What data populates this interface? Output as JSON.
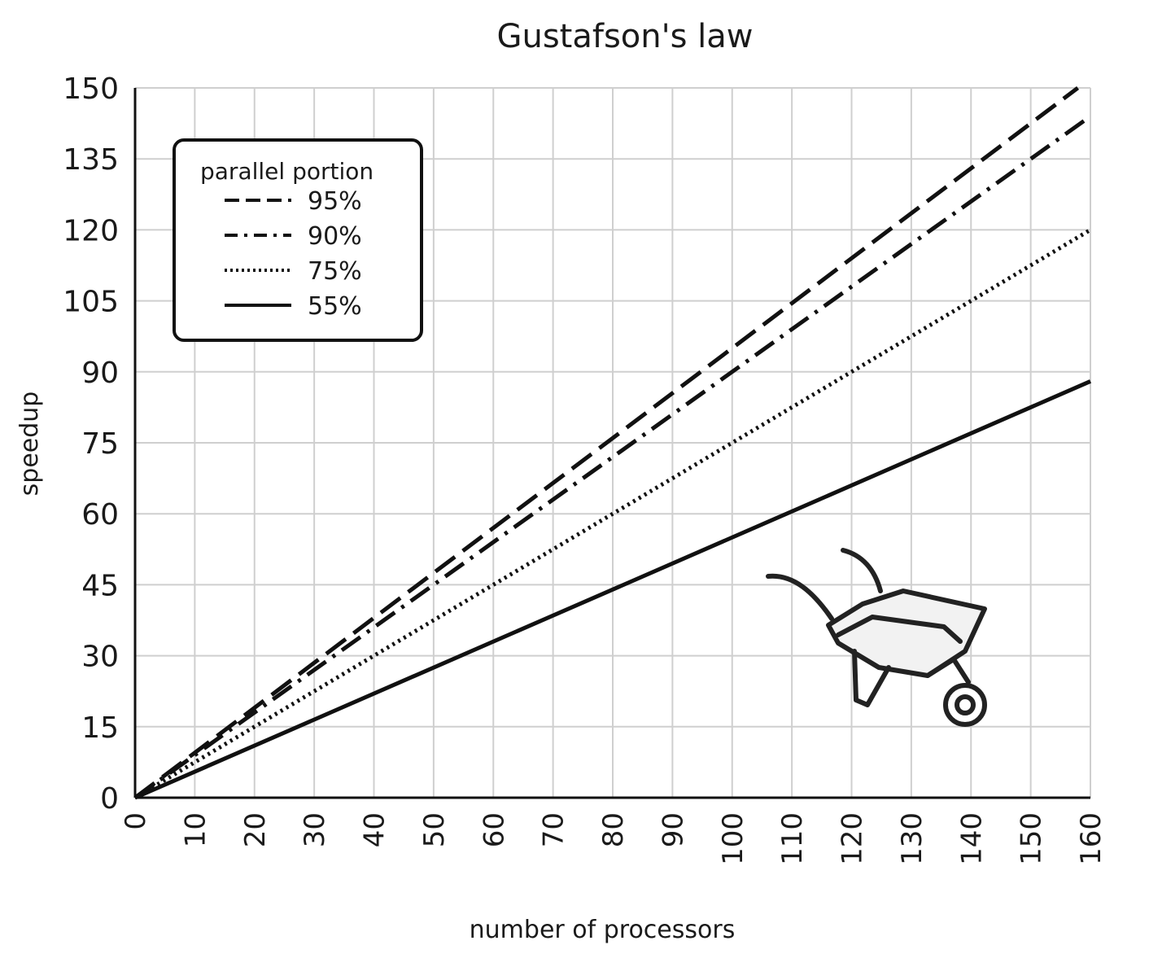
{
  "chart_data": {
    "type": "line",
    "title": "Gustafson's law",
    "xlabel": "number of processors",
    "ylabel": "speedup",
    "xlim": [
      0,
      160
    ],
    "ylim": [
      0,
      150
    ],
    "xticks": [
      0,
      10,
      20,
      30,
      40,
      50,
      60,
      70,
      80,
      90,
      100,
      110,
      120,
      130,
      140,
      150,
      160
    ],
    "yticks": [
      0,
      15,
      30,
      45,
      60,
      75,
      90,
      105,
      120,
      135,
      150
    ],
    "grid": true,
    "legend": {
      "title": "parallel portion",
      "position": "top-left"
    },
    "series": [
      {
        "name": "95%",
        "style": "dashed",
        "x": [
          0,
          160
        ],
        "y": [
          0,
          152
        ]
      },
      {
        "name": "90%",
        "style": "dashdot",
        "x": [
          0,
          160
        ],
        "y": [
          0,
          144
        ]
      },
      {
        "name": "75%",
        "style": "dotted",
        "x": [
          0,
          160
        ],
        "y": [
          0,
          120
        ]
      },
      {
        "name": "55%",
        "style": "solid",
        "x": [
          0,
          160
        ],
        "y": [
          0,
          88
        ]
      }
    ],
    "line_color": "#111111"
  }
}
